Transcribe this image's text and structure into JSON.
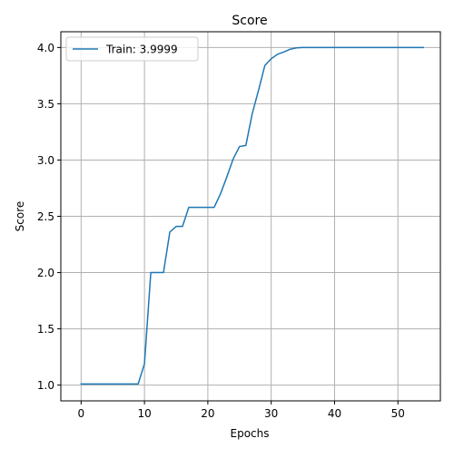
{
  "chart_data": {
    "type": "line",
    "title": "Score",
    "xlabel": "Epochs",
    "ylabel": "Score",
    "xlim": [
      -3.2,
      56.7
    ],
    "ylim": [
      0.86,
      4.14
    ],
    "xticks": [
      0,
      10,
      20,
      30,
      40,
      50
    ],
    "yticks": [
      1.0,
      1.5,
      2.0,
      2.5,
      3.0,
      3.5,
      4.0
    ],
    "xtick_labels": [
      "0",
      "10",
      "20",
      "30",
      "40",
      "50"
    ],
    "ytick_labels": [
      "1.0",
      "1.5",
      "2.0",
      "2.5",
      "3.0",
      "3.5",
      "4.0"
    ],
    "grid": true,
    "legend_position": "top-left",
    "colors": {
      "series": "#1f77b4",
      "grid": "#b0b0b0",
      "axis": "#000000"
    },
    "series": [
      {
        "name": "Train: 3.9999",
        "x": [
          0,
          1,
          2,
          3,
          4,
          5,
          6,
          7,
          8,
          9,
          10,
          11,
          12,
          13,
          14,
          15,
          16,
          17,
          18,
          19,
          20,
          21,
          22,
          23,
          24,
          25,
          26,
          27,
          28,
          29,
          30,
          31,
          32,
          33,
          34,
          35,
          36,
          37,
          38,
          39,
          40,
          41,
          42,
          43,
          44,
          45,
          46,
          47,
          48,
          49,
          50,
          51,
          52,
          53,
          54
        ],
        "values": [
          1.01,
          1.01,
          1.01,
          1.01,
          1.01,
          1.01,
          1.01,
          1.01,
          1.01,
          1.01,
          1.19,
          2.0,
          2.0,
          2.0,
          2.36,
          2.41,
          2.41,
          2.58,
          2.58,
          2.58,
          2.58,
          2.58,
          2.7,
          2.85,
          3.01,
          3.12,
          3.13,
          3.41,
          3.62,
          3.84,
          3.9,
          3.94,
          3.96,
          3.985,
          3.997,
          4.0,
          4.0,
          4.0,
          4.0,
          4.0,
          4.0,
          4.0,
          4.0,
          4.0,
          4.0,
          4.0,
          4.0,
          4.0,
          4.0,
          4.0,
          4.0,
          4.0,
          4.0,
          4.0,
          4.0
        ]
      }
    ]
  }
}
